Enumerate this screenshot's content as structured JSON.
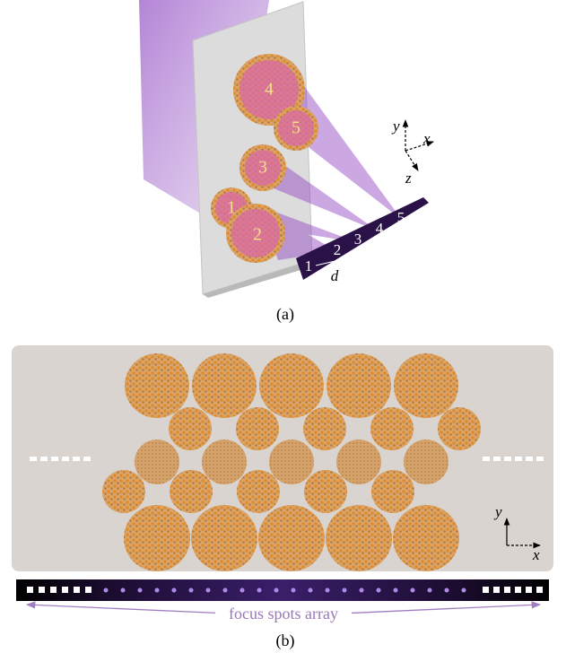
{
  "panel_a": {
    "caption": "(a)",
    "metasurface_labels": [
      "4",
      "5",
      "3",
      "1",
      "2"
    ],
    "spot_labels": [
      "1",
      "2",
      "3",
      "4",
      "5"
    ],
    "spacing_label": "d",
    "axes": {
      "y": "y",
      "x": "x",
      "z": "z"
    }
  },
  "panel_b": {
    "caption": "(b)",
    "axes": {
      "y": "y",
      "x": "x"
    },
    "focus_label": "focus spots array"
  }
}
